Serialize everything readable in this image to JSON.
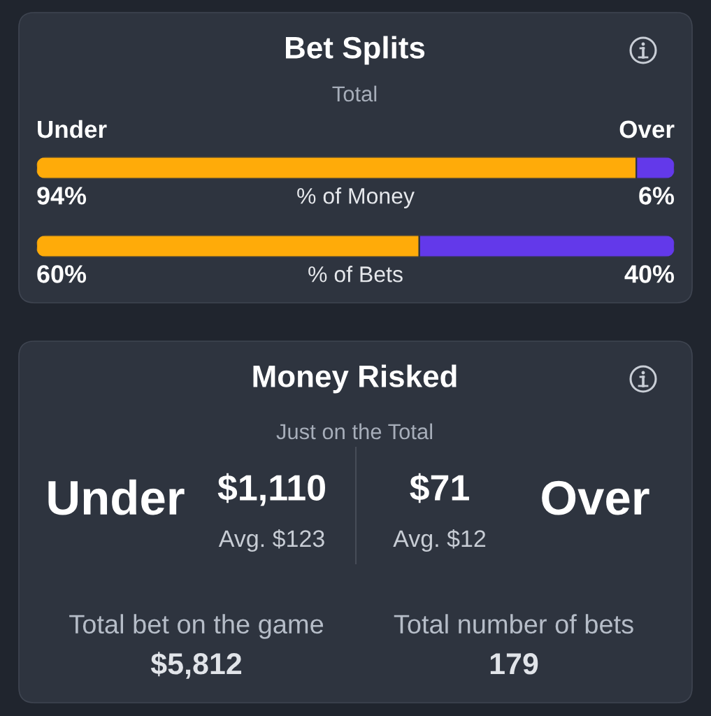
{
  "chart_data": [
    {
      "type": "bar",
      "orientation": "horizontal",
      "stacked": true,
      "title": "Bet Splits",
      "subtitle": "Total",
      "categories": [
        "% of Money",
        "% of Bets"
      ],
      "series": [
        {
          "name": "Under",
          "color": "#ffab09",
          "values": [
            94,
            60
          ],
          "value_labels": [
            "94%",
            "60%"
          ]
        },
        {
          "name": "Over",
          "color": "#6339ea",
          "values": [
            6,
            40
          ],
          "value_labels": [
            "6%",
            "40%"
          ]
        }
      ],
      "tick_labels": "y"
    },
    {
      "type": "other",
      "title": "Money Risked",
      "subtitle": "Just on the Total",
      "annotations": [
        "Under",
        "$1,110",
        "Avg. $123",
        "$71",
        "Avg. $12",
        "Over",
        "Total bet on the game",
        "$5,812",
        "Total number of bets",
        "179"
      ]
    }
  ]
}
